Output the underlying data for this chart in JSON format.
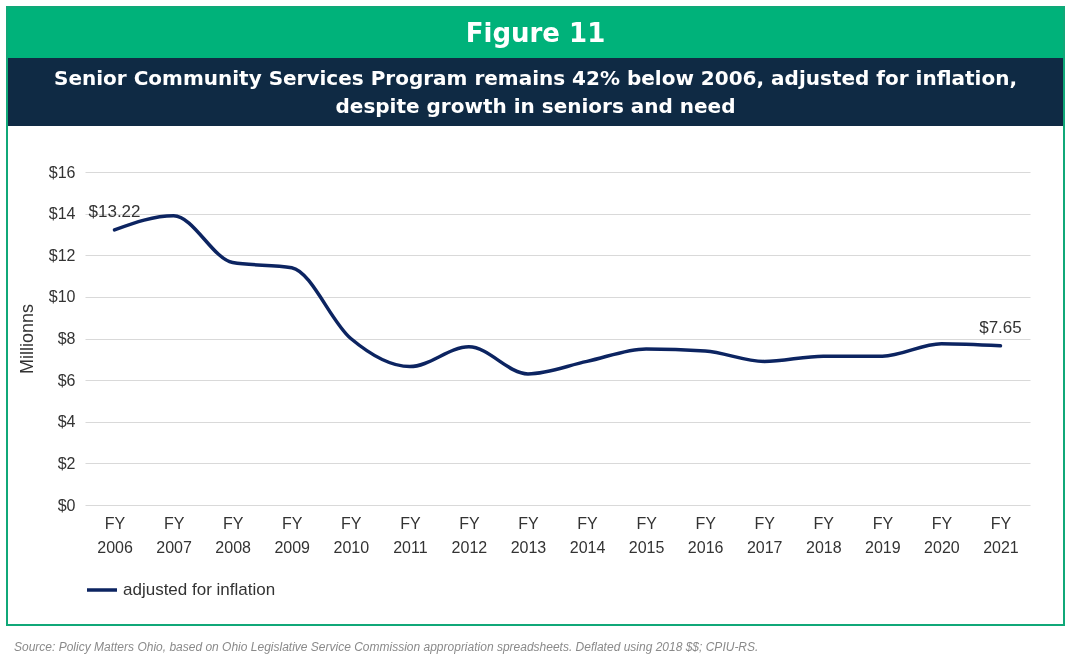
{
  "chart_data": {
    "type": "line",
    "title": "Figure 11",
    "subtitle": "Senior Community Services Program remains 42% below 2006, adjusted for inflation, despite growth in seniors and need",
    "ylabel": "Millionns",
    "categories": [
      "FY 2006",
      "FY 2007",
      "FY 2008",
      "FY 2009",
      "FY 2010",
      "FY 2011",
      "FY 2012",
      "FY 2013",
      "FY 2014",
      "FY 2015",
      "FY 2016",
      "FY 2017",
      "FY 2018",
      "FY 2019",
      "FY 2020",
      "FY 2021"
    ],
    "series": [
      {
        "name": "adjusted for inflation",
        "color": "#0c2461",
        "values": [
          13.22,
          13.9,
          11.65,
          11.4,
          8.0,
          6.65,
          7.6,
          6.3,
          6.9,
          7.5,
          7.4,
          6.9,
          7.15,
          7.15,
          7.75,
          7.65
        ],
        "value_labels": [
          "$13.22",
          null,
          null,
          null,
          null,
          null,
          null,
          null,
          null,
          null,
          null,
          null,
          null,
          null,
          null,
          "$7.65"
        ]
      }
    ],
    "ylim": [
      0,
      16
    ],
    "yticks": [
      {
        "value": 0,
        "label": "$0"
      },
      {
        "value": 2,
        "label": "$2"
      },
      {
        "value": 4,
        "label": "$4"
      },
      {
        "value": 6,
        "label": "$6"
      },
      {
        "value": 8,
        "label": "$8"
      },
      {
        "value": 10,
        "label": "$10"
      },
      {
        "value": 12,
        "label": "$12"
      },
      {
        "value": 14,
        "label": "$14"
      },
      {
        "value": 16,
        "label": "$16"
      }
    ],
    "grid": "y",
    "legend": "bottom",
    "marker": "none",
    "line_style": "solid",
    "annotations": [
      "Source: Policy Matters Ohio, based on Ohio Legislative Service Commission appropriation spreadsheets. Deflated using 2018 $$; CPIU-RS."
    ]
  }
}
